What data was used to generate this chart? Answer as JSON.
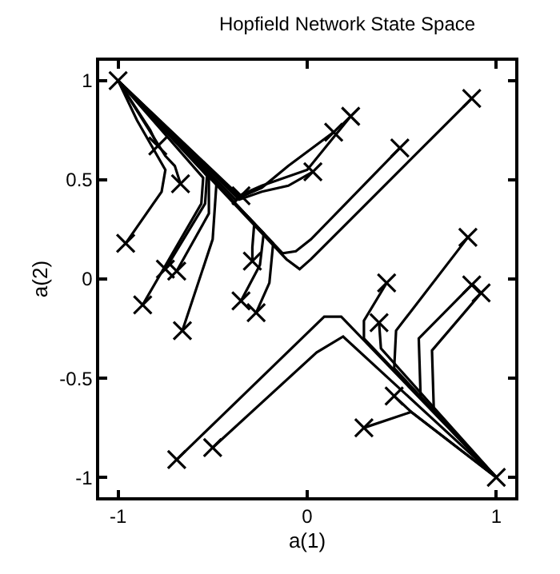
{
  "chart_data": {
    "type": "line",
    "title": "Hopfield Network State Space",
    "xlabel": "a(1)",
    "ylabel": "a(2)",
    "xlim": [
      -1.1,
      1.1
    ],
    "ylim": [
      -1.1,
      1.1
    ],
    "xticks": [
      -1,
      0,
      1
    ],
    "yticks": [
      -1,
      -0.5,
      0,
      0.5,
      1
    ],
    "marker": "none",
    "line_style": "solid",
    "series": [
      {
        "color": "#000000",
        "x": [
          0.23,
          0.0,
          -0.24,
          -0.36,
          -1.0
        ],
        "values": [
          0.82,
          0.55,
          0.47,
          0.42,
          1.0
        ]
      },
      {
        "color": "#000000",
        "x": [
          0.14,
          -0.1,
          -0.24,
          -0.36,
          -1.0
        ],
        "values": [
          0.74,
          0.57,
          0.46,
          0.41,
          1.0
        ]
      },
      {
        "color": "#000000",
        "x": [
          0.03,
          -0.1,
          -0.24,
          -0.36,
          -1.0
        ],
        "values": [
          0.54,
          0.47,
          0.44,
          0.4,
          1.0
        ]
      },
      {
        "color": "#000000",
        "x": [
          -0.35,
          -0.38,
          -1.0
        ],
        "values": [
          0.42,
          0.4,
          1.0
        ]
      },
      {
        "color": "#000000",
        "x": [
          0.87,
          0.02,
          -0.04,
          -0.11,
          -1.0
        ],
        "values": [
          0.91,
          0.1,
          0.05,
          0.1,
          1.0
        ]
      },
      {
        "color": "#000000",
        "x": [
          0.49,
          0.02,
          -0.06,
          -0.13,
          -1.0
        ],
        "values": [
          0.66,
          0.2,
          0.14,
          0.13,
          1.0
        ]
      },
      {
        "color": "#000000",
        "x": [
          -0.79,
          -0.83,
          -1.0
        ],
        "values": [
          0.67,
          0.75,
          1.0
        ]
      },
      {
        "color": "#000000",
        "x": [
          -0.67,
          -0.7,
          -0.75,
          -1.0
        ],
        "values": [
          0.48,
          0.57,
          0.62,
          1.0
        ]
      },
      {
        "color": "#000000",
        "x": [
          -0.96,
          -0.77,
          -0.75,
          -0.9,
          -1.0
        ],
        "values": [
          0.18,
          0.44,
          0.55,
          0.8,
          1.0
        ]
      },
      {
        "color": "#000000",
        "x": [
          -0.87,
          -0.56,
          -0.55,
          -1.0
        ],
        "values": [
          -0.13,
          0.38,
          0.51,
          1.0
        ]
      },
      {
        "color": "#000000",
        "x": [
          -0.75,
          -0.54,
          -0.53,
          -1.0
        ],
        "values": [
          0.05,
          0.38,
          0.52,
          1.0
        ]
      },
      {
        "color": "#000000",
        "x": [
          -0.69,
          -0.52,
          -0.52,
          -1.0
        ],
        "values": [
          0.04,
          0.33,
          0.52,
          1.0
        ]
      },
      {
        "color": "#000000",
        "x": [
          -0.66,
          -0.5,
          -0.48,
          -1.0
        ],
        "values": [
          -0.26,
          0.2,
          0.48,
          1.0
        ]
      },
      {
        "color": "#000000",
        "x": [
          -0.29,
          -0.29,
          -0.28,
          -1.0
        ],
        "values": [
          0.09,
          0.16,
          0.28,
          1.0
        ]
      },
      {
        "color": "#000000",
        "x": [
          -0.35,
          -0.25,
          -0.23,
          -1.0
        ],
        "values": [
          -0.11,
          0.07,
          0.23,
          1.0
        ]
      },
      {
        "color": "#000000",
        "x": [
          -0.27,
          -0.2,
          -0.18,
          -1.0
        ],
        "values": [
          -0.17,
          -0.02,
          0.18,
          1.0
        ]
      },
      {
        "color": "#000000",
        "x": [
          -0.69,
          0.09,
          0.18,
          1.0
        ],
        "values": [
          -0.91,
          -0.19,
          -0.19,
          -1.0
        ]
      },
      {
        "color": "#000000",
        "x": [
          -0.5,
          0.05,
          0.19,
          1.0
        ],
        "values": [
          -0.85,
          -0.37,
          -0.29,
          -1.0
        ]
      },
      {
        "color": "#000000",
        "x": [
          0.85,
          0.47,
          0.46,
          1.0
        ],
        "values": [
          0.21,
          -0.26,
          -0.45,
          -1.0
        ]
      },
      {
        "color": "#000000",
        "x": [
          0.87,
          0.59,
          0.6,
          1.0
        ],
        "values": [
          -0.03,
          -0.3,
          -0.6,
          -1.0
        ]
      },
      {
        "color": "#000000",
        "x": [
          0.92,
          0.66,
          0.67,
          1.0
        ],
        "values": [
          -0.07,
          -0.36,
          -0.67,
          -1.0
        ]
      },
      {
        "color": "#000000",
        "x": [
          0.42,
          0.3,
          0.3,
          1.0
        ],
        "values": [
          -0.02,
          -0.21,
          -0.3,
          -1.0
        ]
      },
      {
        "color": "#000000",
        "x": [
          0.38,
          0.39,
          1.0
        ],
        "values": [
          -0.22,
          -0.35,
          -1.0
        ]
      },
      {
        "color": "#000000",
        "x": [
          0.46,
          0.55,
          1.0
        ],
        "values": [
          -0.59,
          -0.67,
          -1.0
        ]
      },
      {
        "color": "#000000",
        "x": [
          0.3,
          0.55,
          1.0
        ],
        "values": [
          -0.75,
          -0.67,
          -1.0
        ]
      },
      {
        "type": "scatter",
        "marker": "cross",
        "color": "#000000",
        "x": [
          0.23,
          0.14,
          0.03,
          -0.35,
          0.87,
          0.49,
          -0.79,
          -0.67,
          -0.96,
          -0.87,
          -0.75,
          -0.69,
          -0.66,
          -0.29,
          -0.35,
          -0.27,
          -0.69,
          -0.5,
          0.85,
          0.87,
          0.92,
          0.42,
          0.38,
          0.46,
          0.3
        ],
        "values": [
          0.82,
          0.74,
          0.54,
          0.42,
          0.91,
          0.66,
          0.67,
          0.48,
          0.18,
          -0.13,
          0.05,
          0.04,
          -0.26,
          0.09,
          -0.11,
          -0.17,
          -0.91,
          -0.85,
          0.21,
          -0.03,
          -0.07,
          -0.02,
          -0.22,
          -0.59,
          -0.75
        ]
      },
      {
        "type": "scatter",
        "marker": "cross",
        "color": "#000000",
        "x": [
          -1,
          1
        ],
        "values": [
          1,
          -1
        ]
      }
    ]
  }
}
